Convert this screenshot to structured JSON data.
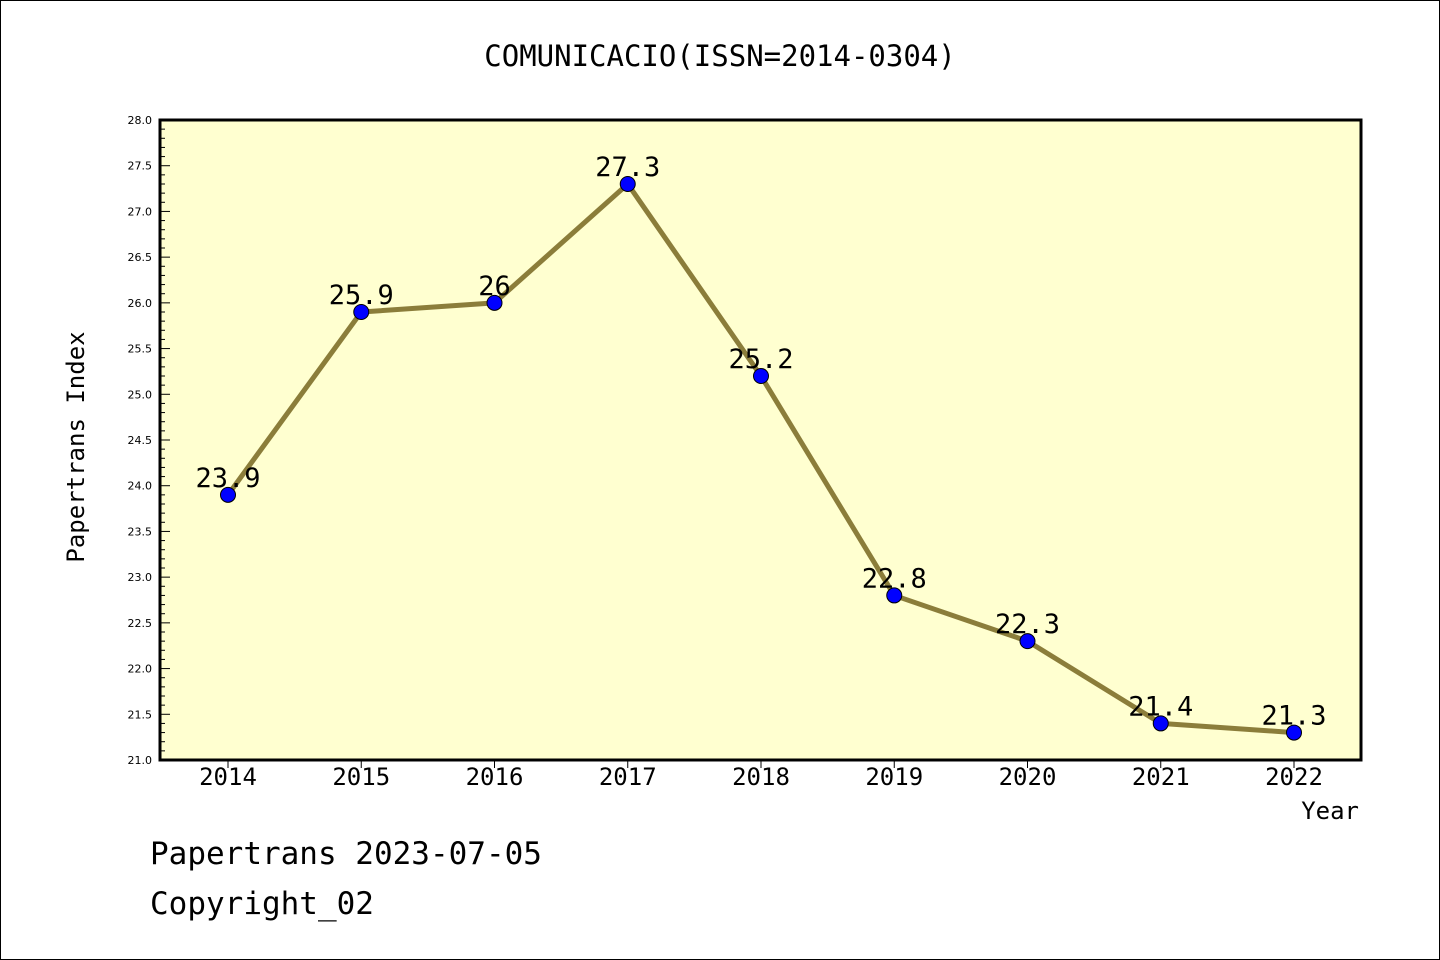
{
  "chart_data": {
    "type": "line",
    "title": "COMUNICACIO(ISSN=2014-0304)",
    "xlabel": "Year",
    "ylabel": "Papertrans Index",
    "categories": [
      "2014",
      "2015",
      "2016",
      "2017",
      "2018",
      "2019",
      "2020",
      "2021",
      "2022"
    ],
    "values": [
      23.9,
      25.9,
      26,
      27.3,
      25.2,
      22.8,
      22.3,
      21.4,
      21.3
    ],
    "data_labels": [
      "23.9",
      "25.9",
      "26",
      "27.3",
      "25.2",
      "22.8",
      "22.3",
      "21.4",
      "21.3"
    ],
    "ylim": [
      21.0,
      28.0
    ],
    "yticks": [
      "21.0",
      "21.5",
      "22.0",
      "22.5",
      "23.0",
      "23.5",
      "24.0",
      "24.5",
      "25.0",
      "25.5",
      "26.0",
      "26.5",
      "27.0",
      "27.5",
      "28.0"
    ],
    "grid": false,
    "colors": {
      "plot_background": "#ffffd0",
      "line": "#8b7d3a",
      "marker": "#0000ff"
    }
  },
  "footer": {
    "line1": "Papertrans 2023-07-05",
    "line2": "Copyright_02"
  }
}
